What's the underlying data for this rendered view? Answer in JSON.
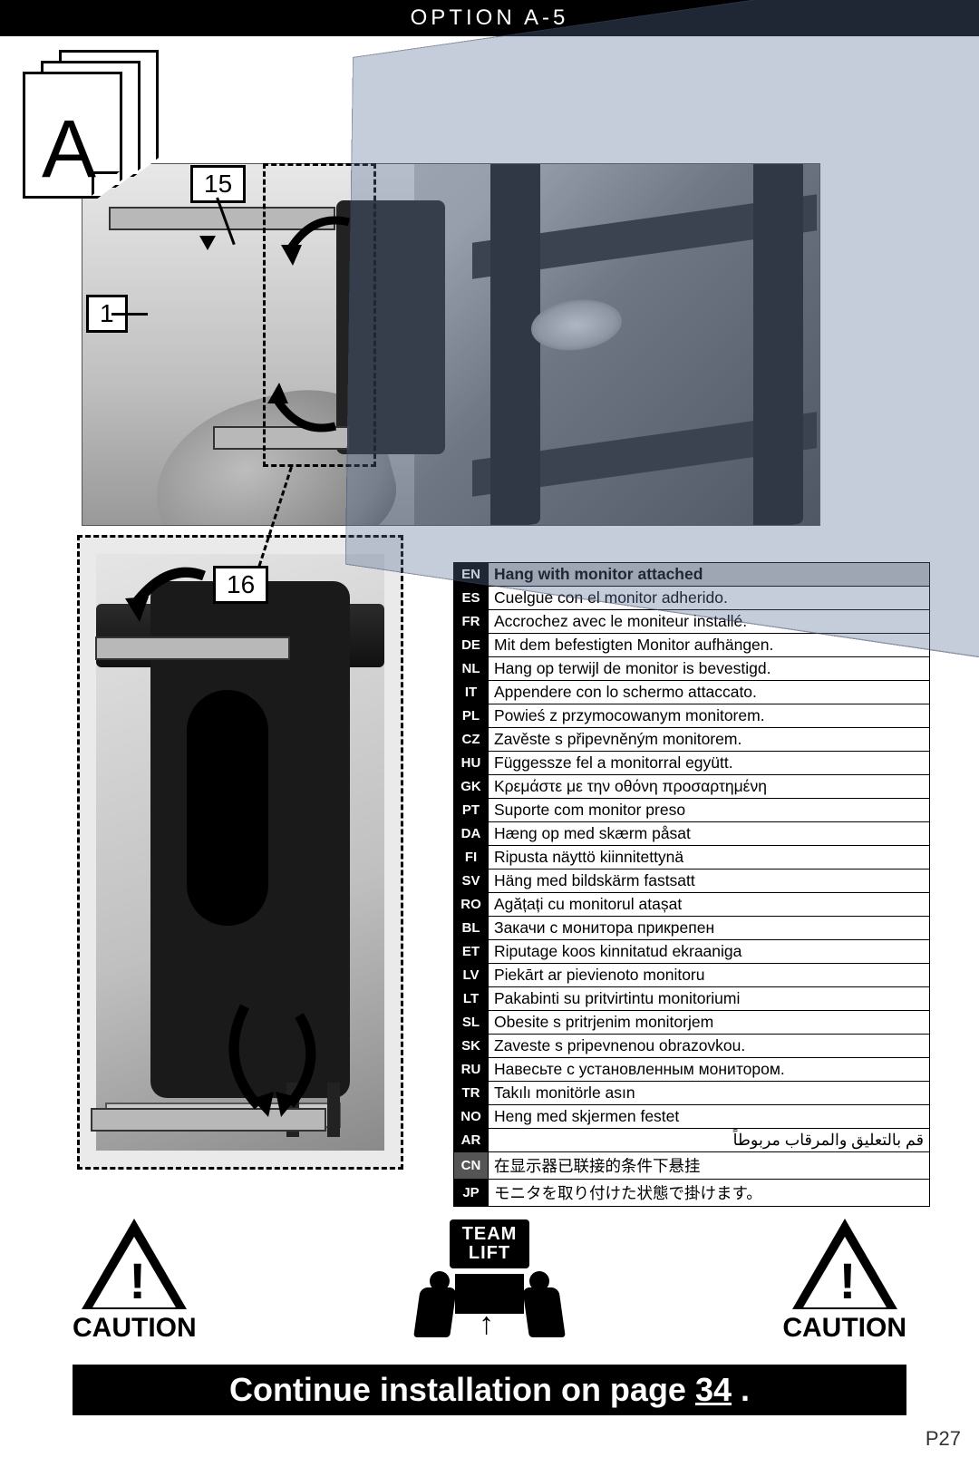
{
  "header": {
    "title": "OPTION A-5"
  },
  "section_card": {
    "letter": "A"
  },
  "part_labels": {
    "p15": "15",
    "p1": "1",
    "p16": "16"
  },
  "team_lift": {
    "line1": "TEAM",
    "line2": "LIFT"
  },
  "caution": {
    "label": "CAUTION"
  },
  "continue": {
    "prefix": "Continue installation on page ",
    "page": "34",
    "suffix": " ."
  },
  "page_number": "P27",
  "lang_table": {
    "columns": [
      "code",
      "text"
    ],
    "rows": [
      {
        "code": "EN",
        "text": "Hang with monitor attached",
        "header": true
      },
      {
        "code": "ES",
        "text": "Cuelgue con el monitor adherido."
      },
      {
        "code": "FR",
        "text": "Accrochez avec le moniteur installé."
      },
      {
        "code": "DE",
        "text": "Mit dem befestigten Monitor aufhängen."
      },
      {
        "code": "NL",
        "text": "Hang op terwijl de monitor is bevestigd."
      },
      {
        "code": "IT",
        "text": "Appendere con lo schermo attaccato."
      },
      {
        "code": "PL",
        "text": "Powieś z przymocowanym monitorem."
      },
      {
        "code": "CZ",
        "text": "Zavěste s připevněným monitorem."
      },
      {
        "code": "HU",
        "text": "Függessze fel a monitorral együtt."
      },
      {
        "code": "GK",
        "text": "Κρεμάστε με την οθόνη προσαρτημένη"
      },
      {
        "code": "PT",
        "text": "Suporte com monitor preso"
      },
      {
        "code": "DA",
        "text": "Hæng op med skærm påsat"
      },
      {
        "code": "FI",
        "text": "Ripusta näyttö kiinnitettynä"
      },
      {
        "code": "SV",
        "text": "Häng med bildskärm fastsatt"
      },
      {
        "code": "RO",
        "text": "Agățați cu monitorul atașat"
      },
      {
        "code": "BL",
        "text": "Закачи с монитора прикрепен"
      },
      {
        "code": "ET",
        "text": "Riputage koos kinnitatud ekraaniga"
      },
      {
        "code": "LV",
        "text": "Piekārt ar pievienoto monitoru"
      },
      {
        "code": "LT",
        "text": "Pakabinti su pritvirtintu monitoriumi"
      },
      {
        "code": "SL",
        "text": "Obesite s pritrjenim monitorjem"
      },
      {
        "code": "SK",
        "text": "Zaveste s pripevnenou obrazovkou."
      },
      {
        "code": "RU",
        "text": "Навесьте с установленным монитором."
      },
      {
        "code": "TR",
        "text": "Takılı monitörle asın"
      },
      {
        "code": "NO",
        "text": "Heng med skjermen festet"
      },
      {
        "code": "AR",
        "text": "قم بالتعليق والمرقاب مربوطاً"
      },
      {
        "code": "CN",
        "text": "在显示器已联接的条件下悬挂",
        "grey": true
      },
      {
        "code": "JP",
        "text": "モニタを取り付けた状態で掛けます。"
      }
    ]
  },
  "colors": {
    "black": "#000000",
    "white": "#ffffff",
    "grey_hdr": "#c3c3c3",
    "overlay_tv": "rgba(90,110,150,0.35)"
  },
  "figure_types": {
    "photo1": "photo-illustration",
    "photo2": "photo-illustration",
    "lang_table": "table",
    "caution": "infographic",
    "team_lift": "infographic"
  }
}
